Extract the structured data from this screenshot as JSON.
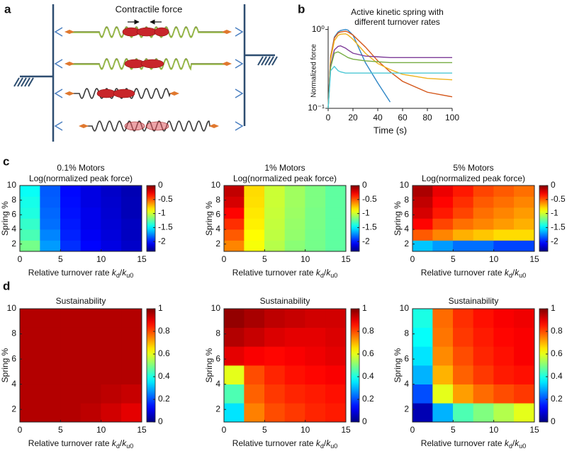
{
  "panel_labels": [
    "a",
    "b",
    "c",
    "d"
  ],
  "diagram": {
    "label": "Contractile force"
  },
  "chart_data": [
    {
      "type": "line",
      "title": [
        "Active kinetic spring with",
        "different turnover rates"
      ],
      "xlabel": "Time (s)",
      "ylabel": "Normalized force",
      "x": [
        0,
        2,
        5,
        8,
        10,
        14,
        16,
        20,
        30,
        40,
        50,
        60,
        80,
        100
      ],
      "series": [
        {
          "color": "#2f86c6",
          "values": [
            0.1,
            0.45,
            0.8,
            0.93,
            0.97,
            1.0,
            0.98,
            0.85,
            0.38,
            0.21,
            0.12,
            null,
            null,
            null
          ]
        },
        {
          "color": "#d4561a",
          "values": [
            0.1,
            0.45,
            0.78,
            0.9,
            0.93,
            0.95,
            0.93,
            0.85,
            0.6,
            0.4,
            0.29,
            0.22,
            0.16,
            0.14
          ]
        },
        {
          "color": "#eeb21c",
          "values": [
            0.1,
            0.42,
            0.72,
            0.84,
            0.87,
            0.88,
            0.85,
            0.75,
            0.5,
            0.37,
            0.31,
            0.27,
            0.24,
            0.23
          ]
        },
        {
          "color": "#7e3d99",
          "values": [
            0.1,
            0.35,
            0.55,
            0.61,
            0.62,
            0.58,
            0.55,
            0.5,
            0.46,
            0.45,
            0.44,
            0.44,
            0.44,
            0.44
          ]
        },
        {
          "color": "#76ac42",
          "values": [
            0.1,
            0.33,
            0.5,
            0.52,
            0.5,
            0.46,
            0.44,
            0.42,
            0.4,
            0.39,
            0.38,
            0.38,
            0.38,
            0.38
          ]
        },
        {
          "color": "#4cc8d6",
          "values": [
            0.1,
            0.3,
            0.34,
            0.3,
            0.29,
            0.28,
            0.28,
            0.28,
            0.28,
            0.28,
            0.28,
            0.28,
            0.28,
            0.28
          ]
        }
      ],
      "xlim": [
        0,
        100
      ],
      "xticks": [
        0,
        20,
        40,
        60,
        80,
        100
      ],
      "ylim": [
        0.1,
        1.1
      ],
      "log_y": true,
      "yticks": [
        {
          "value": 0.1,
          "label": "10⁻¹"
        },
        {
          "value": 1,
          "label": "10⁰"
        }
      ]
    },
    {
      "type": "heatmap",
      "title": "0.1% Motors",
      "subtitle": "Log(normalized peak force)",
      "x": [
        1.25,
        3.75,
        6.25,
        8.75,
        11.25,
        13.75
      ],
      "y": [
        1.75,
        3.25,
        4.75,
        6.25,
        7.75,
        9.25
      ],
      "z": [
        [
          -1.2,
          -1.7,
          -1.95,
          -2.05,
          -2.12,
          -2.18
        ],
        [
          -1.3,
          -1.75,
          -1.98,
          -2.08,
          -2.14,
          -2.2
        ],
        [
          -1.35,
          -1.8,
          -2.0,
          -2.1,
          -2.15,
          -2.2
        ],
        [
          -1.4,
          -1.82,
          -2.02,
          -2.1,
          -2.16,
          -2.22
        ],
        [
          -1.42,
          -1.84,
          -2.03,
          -2.12,
          -2.17,
          -2.22
        ],
        [
          -1.45,
          -1.85,
          -2.04,
          -2.12,
          -2.18,
          -2.23
        ]
      ],
      "colormap": "jet",
      "clim": [
        -2.35,
        0
      ],
      "cticks": [
        0,
        -0.5,
        -1,
        -1.5,
        -2
      ],
      "xlim": [
        0,
        15
      ],
      "xticks": [
        0,
        5,
        10,
        15
      ],
      "ylim": [
        1,
        10
      ],
      "yticks": [
        2,
        4,
        6,
        8,
        10
      ],
      "xlabel": [
        "Relative turnover rate ",
        "k",
        "d",
        "/",
        "k",
        "u0"
      ],
      "ylabel": "Spring %"
    },
    {
      "type": "heatmap",
      "title": "1% Motors",
      "subtitle": "Log(normalized peak force)",
      "x": [
        1.25,
        3.75,
        6.25,
        8.75,
        11.25,
        13.75
      ],
      "y": [
        1.75,
        3.25,
        4.75,
        6.25,
        7.75,
        9.25
      ],
      "z": [
        [
          -0.6,
          -0.9,
          -1.05,
          -1.15,
          -1.2,
          -1.25
        ],
        [
          -0.5,
          -0.88,
          -1.03,
          -1.13,
          -1.2,
          -1.25
        ],
        [
          -0.4,
          -0.85,
          -1.02,
          -1.12,
          -1.19,
          -1.25
        ],
        [
          -0.3,
          -0.83,
          -1.01,
          -1.11,
          -1.19,
          -1.25
        ],
        [
          -0.2,
          -0.81,
          -1.0,
          -1.1,
          -1.18,
          -1.25
        ],
        [
          -0.15,
          -0.8,
          -1.0,
          -1.1,
          -1.18,
          -1.25
        ]
      ],
      "colormap": "jet",
      "clim": [
        -2.35,
        0
      ],
      "cticks": [
        0,
        -0.5,
        -1,
        -1.5,
        -2
      ],
      "xlim": [
        0,
        15
      ],
      "xticks": [
        0,
        5,
        10,
        15
      ],
      "ylim": [
        1,
        10
      ],
      "yticks": [
        2,
        4,
        6,
        8,
        10
      ],
      "xlabel": [
        "Relative turnover rate ",
        "k",
        "d",
        "/",
        "k",
        "u0"
      ],
      "ylabel": "Spring %"
    },
    {
      "type": "heatmap",
      "title": "5% Motors",
      "subtitle": "Log(normalized peak force)",
      "x": [
        1.25,
        3.75,
        6.25,
        8.75,
        11.25,
        13.75
      ],
      "y": [
        1.75,
        3.25,
        4.75,
        6.25,
        7.75,
        9.25
      ],
      "z": [
        [
          -1.6,
          -1.7,
          -1.8,
          -1.8,
          -1.9,
          -1.9
        ],
        [
          -0.5,
          -0.6,
          -0.7,
          -0.75,
          -0.8,
          -0.8
        ],
        [
          -0.3,
          -0.45,
          -0.55,
          -0.6,
          -0.65,
          -0.7
        ],
        [
          -0.2,
          -0.35,
          -0.45,
          -0.55,
          -0.6,
          -0.65
        ],
        [
          -0.15,
          -0.3,
          -0.4,
          -0.5,
          -0.55,
          -0.6
        ],
        [
          -0.1,
          -0.25,
          -0.35,
          -0.45,
          -0.5,
          -0.55
        ]
      ],
      "colormap": "jet",
      "clim": [
        -2.35,
        0
      ],
      "cticks": [
        0,
        -0.5,
        -1,
        -1.5,
        -2
      ],
      "xlim": [
        0,
        15
      ],
      "xticks": [
        0,
        5,
        10,
        15
      ],
      "ylim": [
        1,
        10
      ],
      "yticks": [
        2,
        4,
        6,
        8,
        10
      ],
      "xlabel": [
        "Relative turnover rate ",
        "k",
        "d",
        "/",
        "k",
        "u0"
      ],
      "ylabel": "Spring %"
    },
    {
      "type": "heatmap",
      "title": "Sustainability",
      "x": [
        1.25,
        3.75,
        6.25,
        8.75,
        11.25,
        13.75
      ],
      "y": [
        1.75,
        3.25,
        4.75,
        6.25,
        7.75,
        9.25
      ],
      "z": [
        [
          0.95,
          0.95,
          0.95,
          0.94,
          0.92,
          0.9
        ],
        [
          0.95,
          0.95,
          0.95,
          0.95,
          0.94,
          0.93
        ],
        [
          0.95,
          0.95,
          0.95,
          0.95,
          0.95,
          0.95
        ],
        [
          0.95,
          0.95,
          0.95,
          0.95,
          0.95,
          0.95
        ],
        [
          0.95,
          0.95,
          0.95,
          0.95,
          0.95,
          0.95
        ],
        [
          0.95,
          0.95,
          0.95,
          0.95,
          0.95,
          0.95
        ]
      ],
      "colormap": "jet",
      "clim": [
        0,
        1
      ],
      "cticks": [
        0,
        0.2,
        0.4,
        0.6,
        0.8,
        1
      ],
      "xlim": [
        0,
        15
      ],
      "xticks": [
        0,
        5,
        10,
        15
      ],
      "ylim": [
        1,
        10
      ],
      "yticks": [
        2,
        4,
        6,
        8,
        10
      ],
      "xlabel": [
        "Relative turnover rate ",
        "k",
        "d",
        "/",
        "k",
        "u0"
      ],
      "ylabel": "Spring %"
    },
    {
      "type": "heatmap",
      "title": "Sustainability",
      "x": [
        1.25,
        3.75,
        6.25,
        8.75,
        11.25,
        13.75
      ],
      "y": [
        1.75,
        3.25,
        4.75,
        6.25,
        7.75,
        9.25
      ],
      "z": [
        [
          0.35,
          0.75,
          0.8,
          0.82,
          0.84,
          0.85
        ],
        [
          0.45,
          0.78,
          0.82,
          0.84,
          0.85,
          0.86
        ],
        [
          0.6,
          0.8,
          0.84,
          0.86,
          0.87,
          0.88
        ],
        [
          0.9,
          0.88,
          0.87,
          0.88,
          0.89,
          0.9
        ],
        [
          0.95,
          0.93,
          0.91,
          0.9,
          0.9,
          0.91
        ],
        [
          0.98,
          0.96,
          0.94,
          0.93,
          0.92,
          0.92
        ]
      ],
      "colormap": "jet",
      "clim": [
        0,
        1
      ],
      "cticks": [
        0,
        0.2,
        0.4,
        0.6,
        0.8,
        1
      ],
      "xlim": [
        0,
        15
      ],
      "xticks": [
        0,
        5,
        10,
        15
      ],
      "ylim": [
        1,
        10
      ],
      "yticks": [
        2,
        4,
        6,
        8,
        10
      ],
      "xlabel": [
        "Relative turnover rate ",
        "k",
        "d",
        "/",
        "k",
        "u0"
      ],
      "ylabel": "Spring %"
    },
    {
      "type": "heatmap",
      "title": "Sustainability",
      "x": [
        1.25,
        3.75,
        6.25,
        8.75,
        11.25,
        13.75
      ],
      "y": [
        1.75,
        3.25,
        4.75,
        6.25,
        7.75,
        9.25
      ],
      "z": [
        [
          0.05,
          0.3,
          0.45,
          0.5,
          0.55,
          0.6
        ],
        [
          0.2,
          0.6,
          0.72,
          0.77,
          0.8,
          0.82
        ],
        [
          0.3,
          0.7,
          0.78,
          0.82,
          0.85,
          0.86
        ],
        [
          0.35,
          0.74,
          0.8,
          0.84,
          0.86,
          0.88
        ],
        [
          0.38,
          0.76,
          0.82,
          0.85,
          0.87,
          0.88
        ],
        [
          0.4,
          0.77,
          0.83,
          0.86,
          0.88,
          0.89
        ]
      ],
      "colormap": "jet",
      "clim": [
        0,
        1
      ],
      "cticks": [
        0,
        0.2,
        0.4,
        0.6,
        0.8,
        1
      ],
      "xlim": [
        0,
        15
      ],
      "xticks": [
        0,
        5,
        10,
        15
      ],
      "ylim": [
        1,
        10
      ],
      "yticks": [
        2,
        4,
        6,
        8,
        10
      ],
      "xlabel": [
        "Relative turnover rate ",
        "k",
        "d",
        "/",
        "k",
        "u0"
      ],
      "ylabel": "Spring %"
    }
  ]
}
